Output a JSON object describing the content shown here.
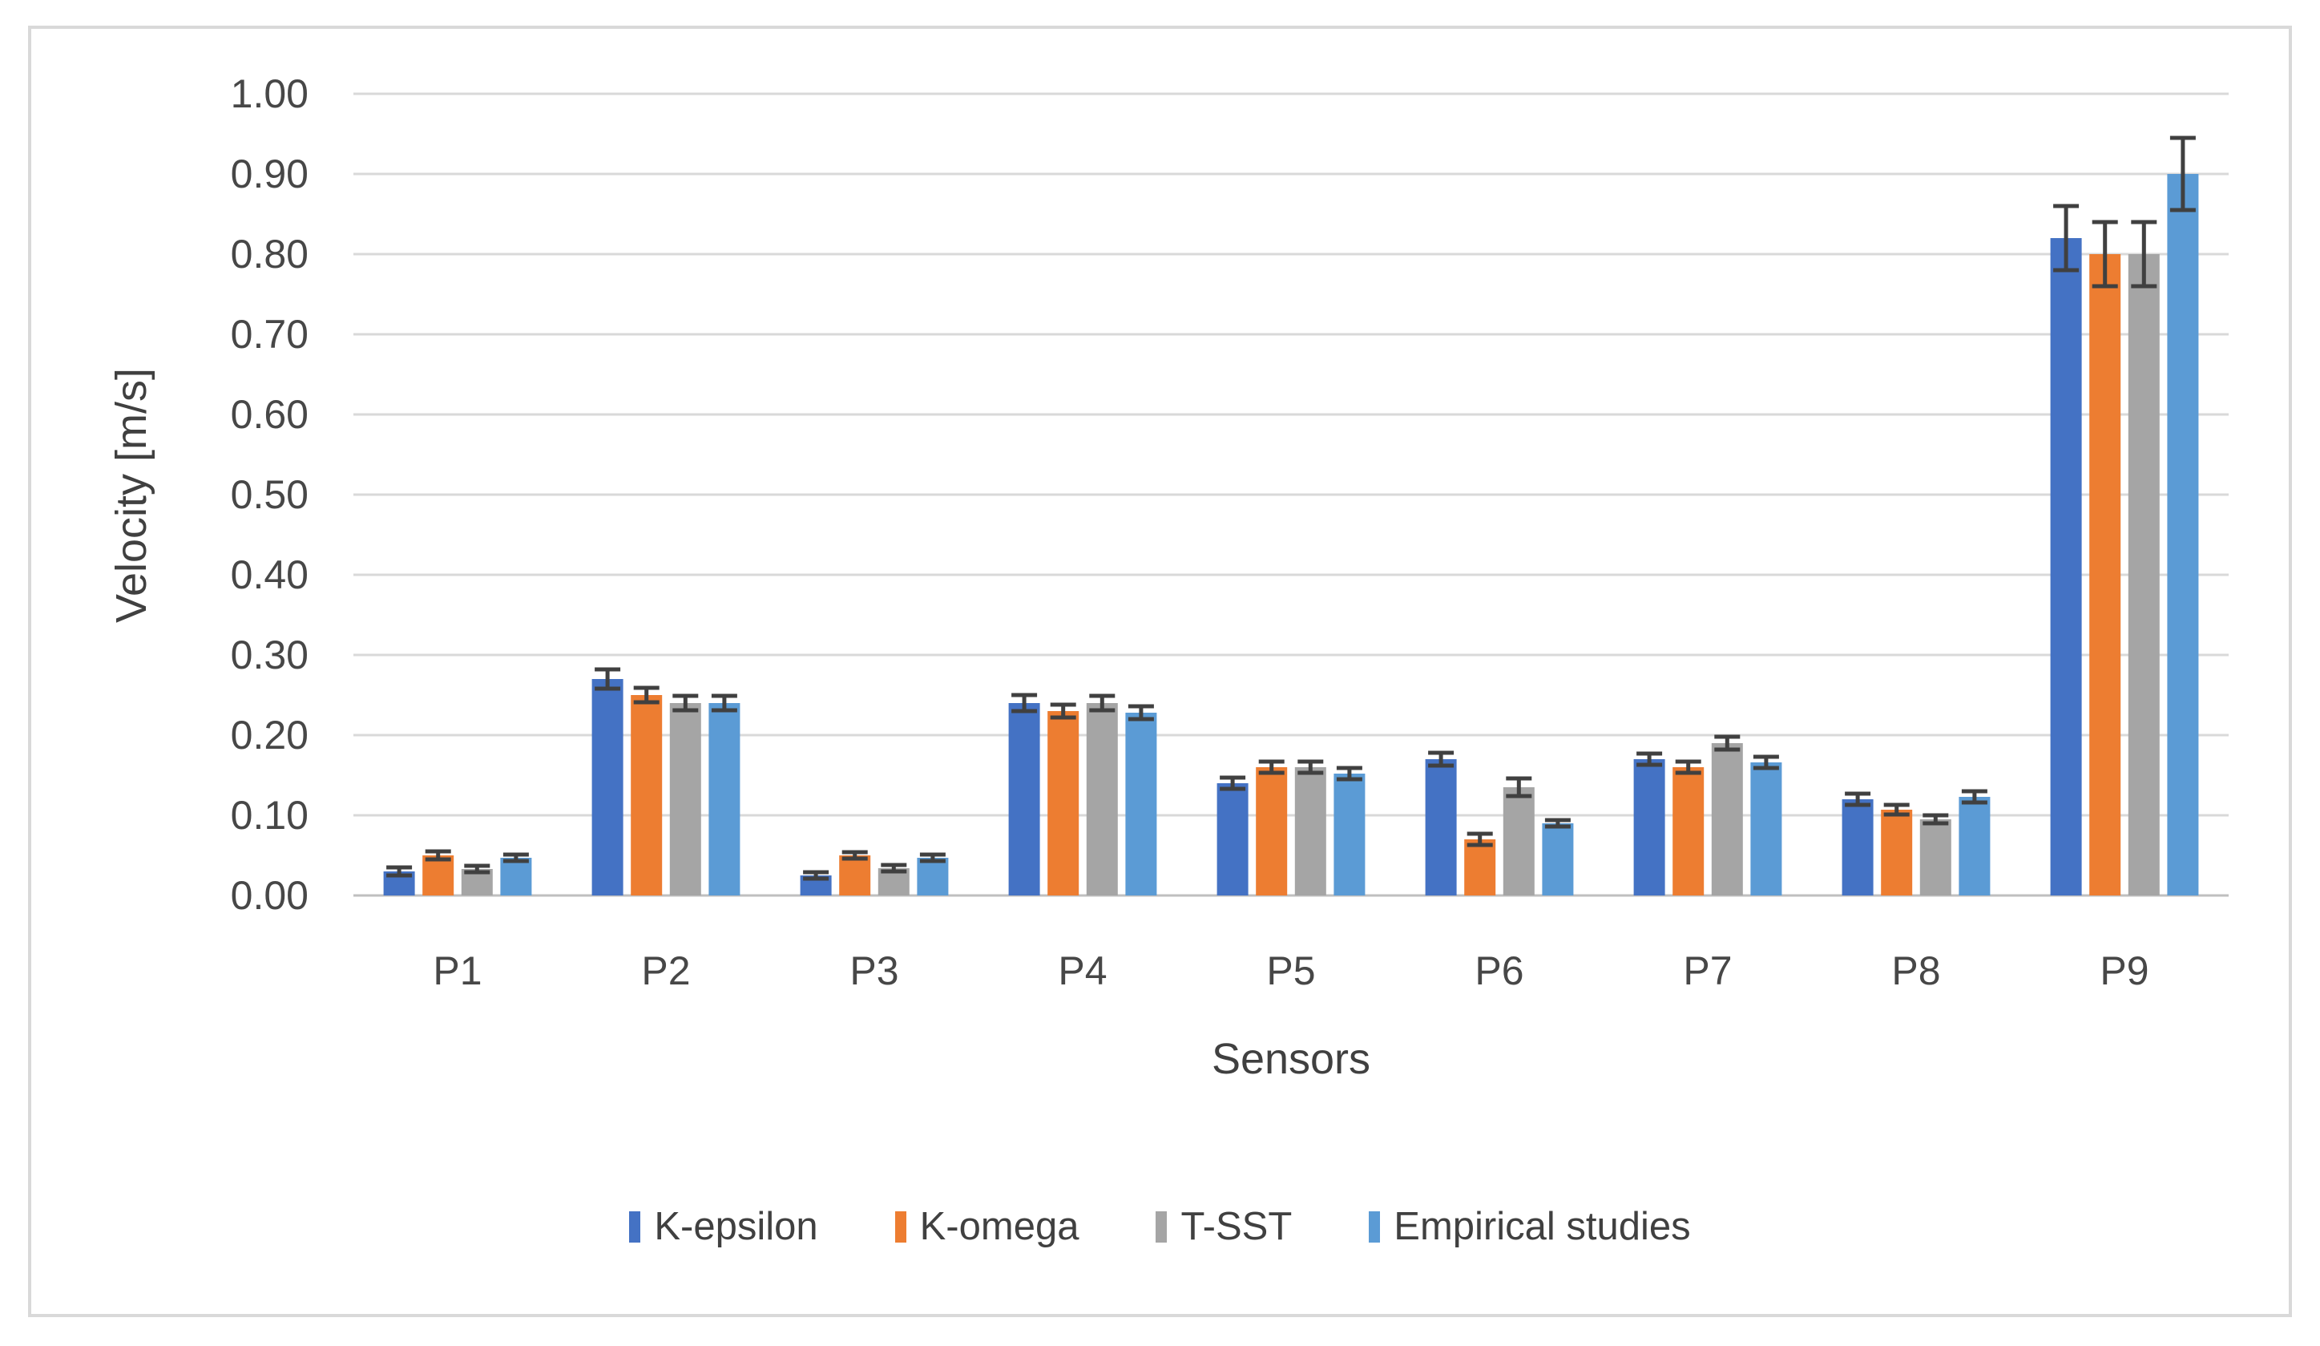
{
  "chart_data": {
    "type": "bar",
    "title": "",
    "xlabel": "Sensors",
    "ylabel": "Velocity [m/s]",
    "categories": [
      "P1",
      "P2",
      "P3",
      "P4",
      "P5",
      "P6",
      "P7",
      "P8",
      "P9"
    ],
    "series": [
      {
        "name": "K-epsilon",
        "color": "#4472C4",
        "values": [
          0.03,
          0.27,
          0.025,
          0.24,
          0.14,
          0.17,
          0.17,
          0.12,
          0.82
        ],
        "errors": [
          0.005,
          0.012,
          0.004,
          0.01,
          0.007,
          0.008,
          0.007,
          0.007,
          0.04
        ]
      },
      {
        "name": "K-omega",
        "color": "#ED7D31",
        "values": [
          0.05,
          0.25,
          0.05,
          0.23,
          0.16,
          0.07,
          0.16,
          0.107,
          0.8
        ],
        "errors": [
          0.005,
          0.009,
          0.004,
          0.008,
          0.007,
          0.007,
          0.007,
          0.006,
          0.04
        ]
      },
      {
        "name": "T-SST",
        "color": "#A5A5A5",
        "values": [
          0.033,
          0.24,
          0.034,
          0.24,
          0.16,
          0.135,
          0.19,
          0.095,
          0.8
        ],
        "errors": [
          0.004,
          0.009,
          0.004,
          0.009,
          0.007,
          0.011,
          0.008,
          0.005,
          0.04
        ]
      },
      {
        "name": "Empirical studies",
        "color": "#5B9BD5",
        "values": [
          0.047,
          0.24,
          0.047,
          0.228,
          0.152,
          0.09,
          0.166,
          0.123,
          0.9
        ],
        "errors": [
          0.004,
          0.009,
          0.004,
          0.008,
          0.007,
          0.004,
          0.007,
          0.007,
          0.045
        ]
      }
    ],
    "y_axis": {
      "min": 0,
      "max": 1.0,
      "step": 0.1,
      "tick_labels": [
        "0.00",
        "0.10",
        "0.20",
        "0.30",
        "0.40",
        "0.50",
        "0.60",
        "0.70",
        "0.80",
        "0.90",
        "1.00"
      ]
    },
    "legend": {
      "position": "bottom",
      "entries": [
        "K-epsilon",
        "K-omega",
        "T-SST",
        "Empirical studies"
      ]
    },
    "grid": {
      "horizontal": true,
      "color": "#D9D9D9"
    },
    "styles": {
      "axis_line_color": "#BFBFBF",
      "error_bar_color": "#404040",
      "text_color": "#474747",
      "frame_border_color": "#D9D9D9",
      "background": "#FFFFFF"
    }
  }
}
